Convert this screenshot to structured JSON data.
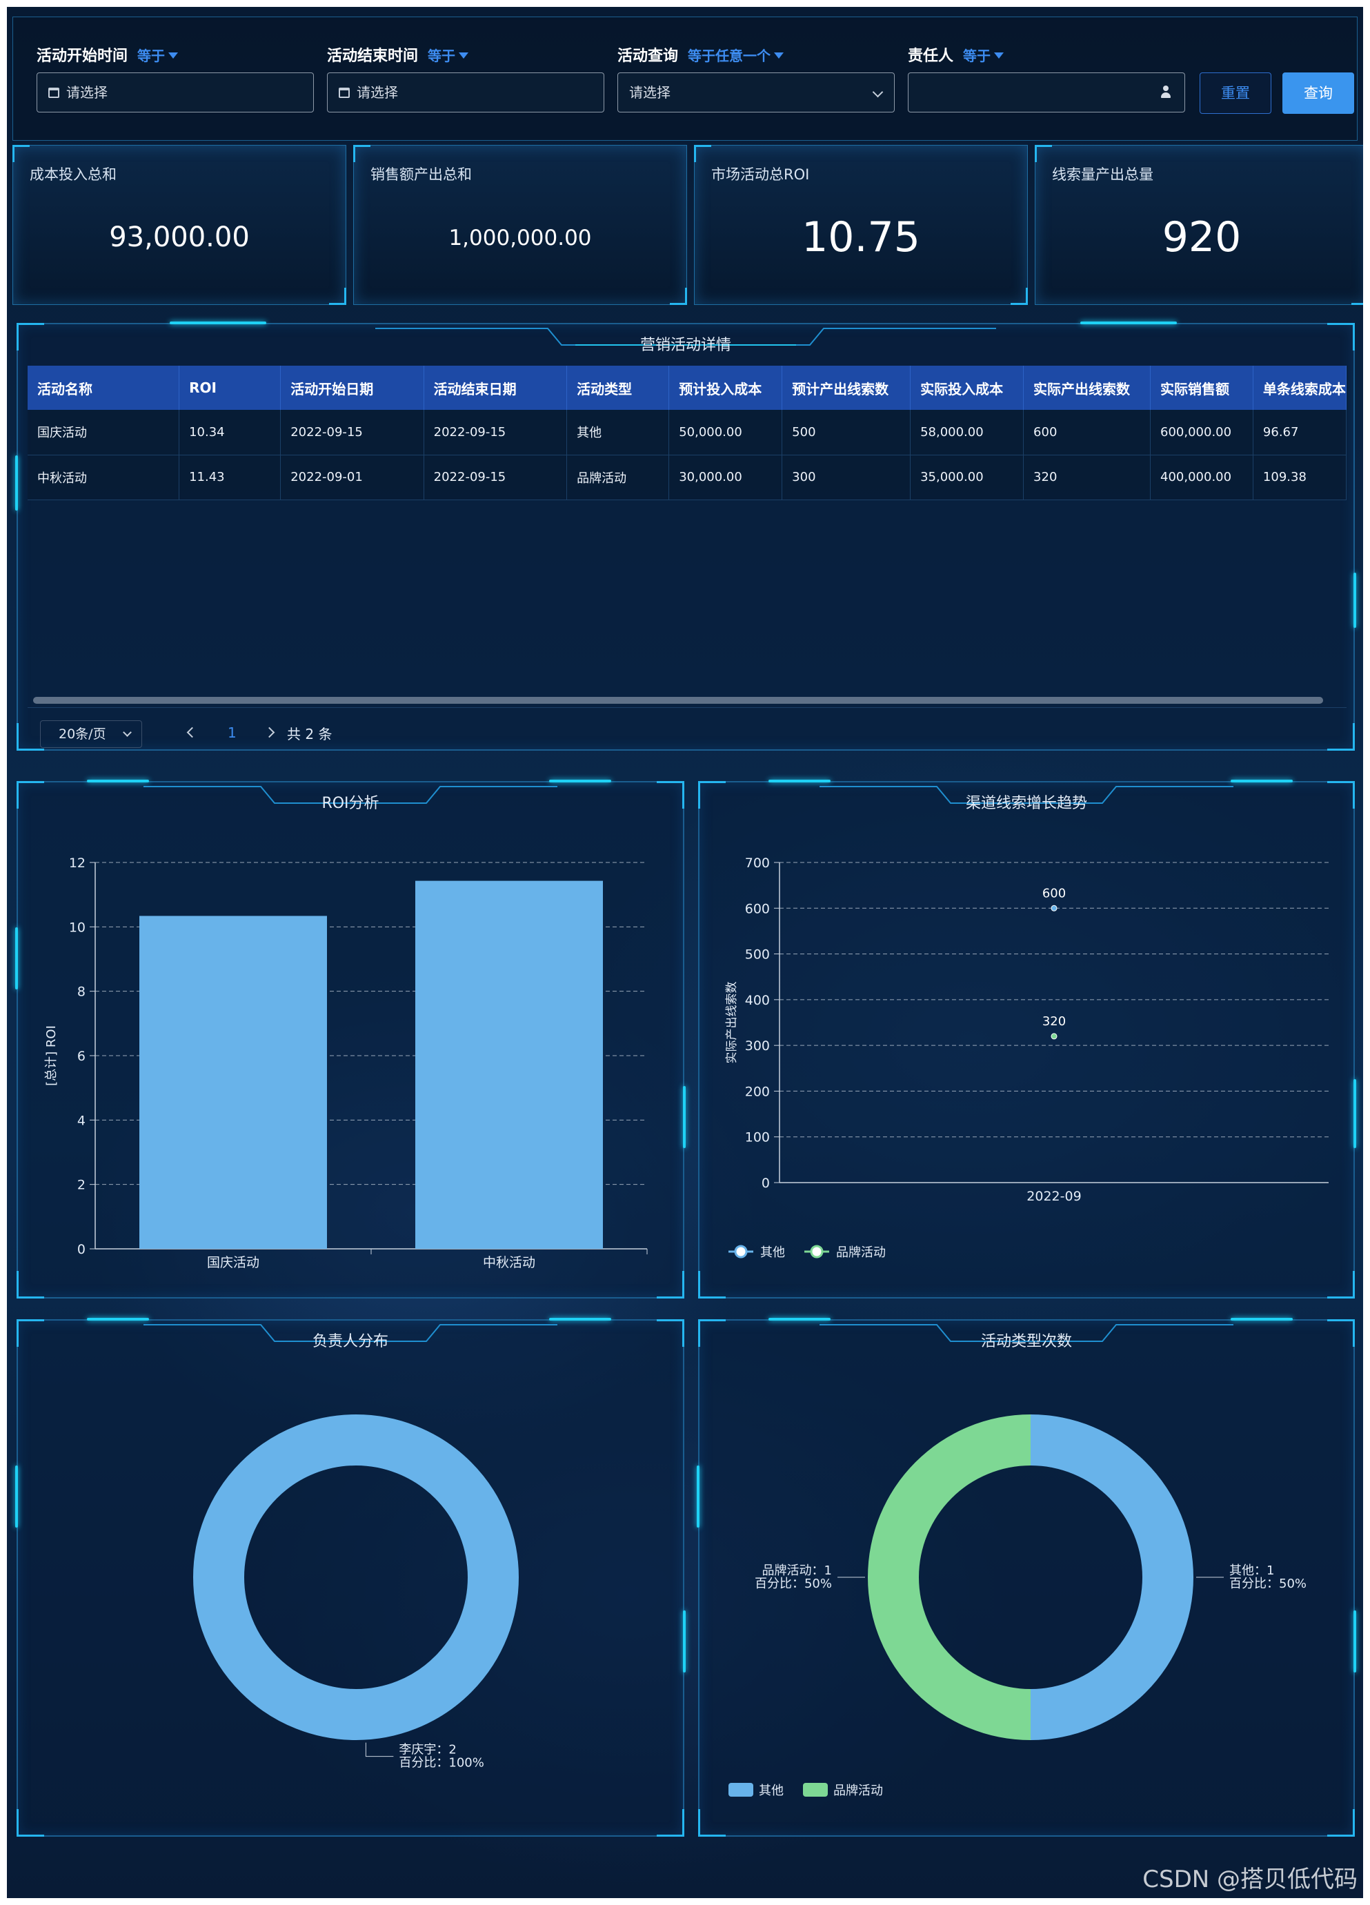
{
  "filters": [
    {
      "label": "活动开始时间",
      "op": "等于",
      "placeholder": "请选择",
      "type": "date"
    },
    {
      "label": "活动结束时间",
      "op": "等于",
      "placeholder": "请选择",
      "type": "date"
    },
    {
      "label": "活动查询",
      "op": "等于任意一个",
      "placeholder": "请选择",
      "type": "select"
    },
    {
      "label": "责任人",
      "op": "等于",
      "placeholder": "",
      "type": "user"
    }
  ],
  "buttons": {
    "reset": "重置",
    "query": "查询"
  },
  "kpis": [
    {
      "title": "成本投入总和",
      "value": "93,000.00"
    },
    {
      "title": "销售额产出总和",
      "value": "1,000,000.00"
    },
    {
      "title": "市场活动总ROI",
      "value": "10.75"
    },
    {
      "title": "线索量产出总量",
      "value": "920"
    }
  ],
  "table": {
    "title": "营销活动详情",
    "columns": [
      "活动名称",
      "ROI",
      "活动开始日期",
      "活动结束日期",
      "活动类型",
      "预计投入成本",
      "预计产出线索数",
      "实际投入成本",
      "实际产出线索数",
      "实际销售额",
      "单条线索成本"
    ],
    "rows": [
      [
        "国庆活动",
        "10.34",
        "2022-09-15",
        "2022-09-15",
        "其他",
        "50,000.00",
        "500",
        "58,000.00",
        "600",
        "600,000.00",
        "96.67"
      ],
      [
        "中秋活动",
        "11.43",
        "2022-09-01",
        "2022-09-15",
        "品牌活动",
        "30,000.00",
        "300",
        "35,000.00",
        "320",
        "400,000.00",
        "109.38"
      ]
    ],
    "pagination": {
      "page_size": "20条/页",
      "current_page": "1",
      "total": "共 2 条"
    }
  },
  "roi_panel": {
    "title": "ROI分析"
  },
  "trend_panel": {
    "title": "渠道线索增长趋势"
  },
  "owner_panel": {
    "title": "负责人分布"
  },
  "type_panel": {
    "title": "活动类型次数"
  },
  "chart_data": [
    {
      "type": "bar",
      "title": "ROI分析",
      "categories": [
        "国庆活动",
        "中秋活动"
      ],
      "values": [
        10.34,
        11.43
      ],
      "ylabel": "[总计] ROI",
      "ylim": [
        0,
        12
      ],
      "yticks": [
        0,
        2,
        4,
        6,
        8,
        10,
        12
      ],
      "color": "#68b3ea",
      "grid": true
    },
    {
      "type": "scatter",
      "title": "渠道线索增长趋势",
      "x": [
        "2022-09"
      ],
      "ylabel": "实际产出线索数",
      "ylim": [
        0,
        700
      ],
      "yticks": [
        0,
        100,
        200,
        300,
        400,
        500,
        600,
        700
      ],
      "series": [
        {
          "name": "其他",
          "values": [
            600
          ],
          "color": "#68b3ea",
          "label": "600"
        },
        {
          "name": "品牌活动",
          "values": [
            320
          ],
          "color": "#7ed894",
          "label": "320"
        }
      ],
      "legend": "bottom-left",
      "grid": true
    },
    {
      "type": "pie",
      "title": "负责人分布",
      "slices": [
        {
          "name": "李庆宇",
          "value": 2,
          "percent": "100%",
          "color": "#68b3ea",
          "label_line1": "李庆宇：2",
          "label_line2": "百分比：100%"
        }
      ]
    },
    {
      "type": "pie",
      "title": "活动类型次数",
      "slices": [
        {
          "name": "其他",
          "value": 1,
          "percent": "50%",
          "color": "#68b3ea",
          "label_line1": "其他：1",
          "label_line2": "百分比：50%"
        },
        {
          "name": "品牌活动",
          "value": 1,
          "percent": "50%",
          "color": "#7ed894",
          "label_line1": "品牌活动：1",
          "label_line2": "百分比：50%"
        }
      ],
      "legend": "bottom-left"
    }
  ],
  "watermark": "CSDN @搭贝低代码"
}
